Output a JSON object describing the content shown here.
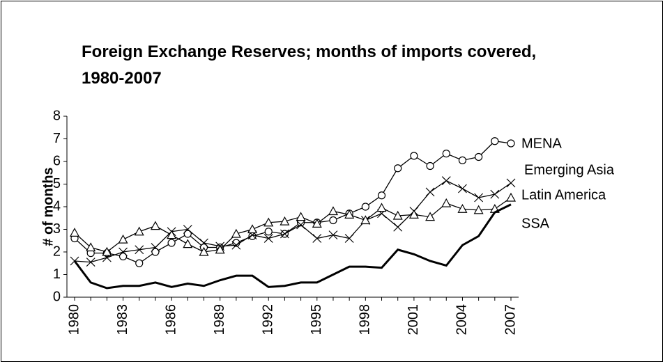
{
  "chart_data": {
    "type": "line",
    "title": "Foreign Exchange Reserves; months of imports covered, 1980-2007",
    "y_label": "# of months",
    "x": [
      1980,
      1981,
      1982,
      1983,
      1984,
      1985,
      1986,
      1987,
      1988,
      1989,
      1990,
      1991,
      1992,
      1993,
      1994,
      1995,
      1996,
      1997,
      1998,
      1999,
      2000,
      2001,
      2002,
      2003,
      2004,
      2005,
      2006,
      2007
    ],
    "xlim": [
      1980,
      2007
    ],
    "xticks": [
      1980,
      1983,
      1986,
      1989,
      1992,
      1995,
      1998,
      2001,
      2004,
      2007
    ],
    "ylim": [
      0,
      8
    ],
    "yticks": [
      0,
      1,
      2,
      3,
      4,
      5,
      6,
      7,
      8
    ],
    "series": [
      {
        "name": "MENA",
        "color": "#000000",
        "marker": "circle",
        "values": [
          2.6,
          1.95,
          1.95,
          1.8,
          1.5,
          2.0,
          2.4,
          2.8,
          2.2,
          2.2,
          2.4,
          2.7,
          2.9,
          2.8,
          3.3,
          3.3,
          3.4,
          3.7,
          4.0,
          4.5,
          5.7,
          6.25,
          5.8,
          6.35,
          6.05,
          6.2,
          6.9,
          6.8
        ]
      },
      {
        "name": "Emerging Asia",
        "color": "#000000",
        "marker": "x",
        "values": [
          1.6,
          1.55,
          1.75,
          2.0,
          2.1,
          2.2,
          2.9,
          3.0,
          2.4,
          2.25,
          2.3,
          2.75,
          2.6,
          2.8,
          3.2,
          2.6,
          2.75,
          2.6,
          3.4,
          3.7,
          3.1,
          3.8,
          4.65,
          5.15,
          4.8,
          4.4,
          4.55,
          5.05
        ]
      },
      {
        "name": "Latin America",
        "color": "#000000",
        "marker": "triangle",
        "values": [
          2.85,
          2.2,
          2.0,
          2.55,
          2.9,
          3.15,
          2.75,
          2.35,
          2.0,
          2.1,
          2.8,
          3.0,
          3.3,
          3.35,
          3.55,
          3.25,
          3.8,
          3.65,
          3.4,
          3.95,
          3.6,
          3.65,
          3.55,
          4.15,
          3.9,
          3.85,
          3.9,
          4.4
        ]
      },
      {
        "name": "SSA",
        "color": "#000000",
        "marker": "none",
        "values": [
          1.6,
          0.65,
          0.4,
          0.5,
          0.5,
          0.65,
          0.45,
          0.6,
          0.5,
          0.75,
          0.95,
          0.95,
          0.45,
          0.5,
          0.65,
          0.65,
          1.0,
          1.35,
          1.35,
          1.3,
          2.1,
          1.9,
          1.6,
          1.4,
          2.3,
          2.7,
          3.75,
          4.1
        ]
      }
    ]
  }
}
